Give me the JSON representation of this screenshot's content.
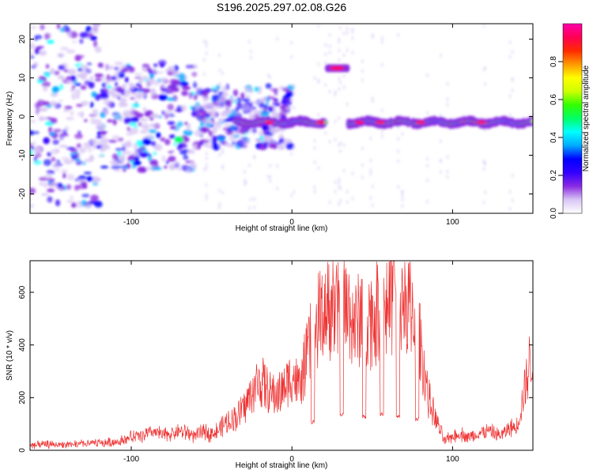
{
  "chart_data": [
    {
      "type": "heatmap",
      "title": "S196.2025.297.02.08.G26",
      "xlabel": "Height of straight line (km)",
      "ylabel": "Frequency (Hz)",
      "xlim": [
        -163,
        150
      ],
      "ylim": [
        -25,
        24
      ],
      "xticks": [
        -100,
        0,
        100
      ],
      "yticks": [
        -20,
        -10,
        0,
        10,
        20
      ],
      "colorbar": {
        "label": "Normalized spectral amplitude",
        "range": [
          0,
          1
        ],
        "ticks": [
          "0.0",
          "0.2",
          "0.4",
          "0.6",
          "0.8"
        ],
        "tick_values": [
          0.0,
          0.2,
          0.4,
          0.6,
          0.8
        ],
        "colormap": [
          "#ffffff",
          "#d8c6f4",
          "#8a2be2",
          "#3300ff",
          "#0000ff",
          "#00aaff",
          "#00ffff",
          "#00ff66",
          "#33ff00",
          "#ccff00",
          "#ffff00",
          "#ff9900",
          "#ff2a00",
          "#ff0055",
          "#ff00aa"
        ]
      },
      "features": [
        {
          "name": "scattered noise left",
          "x_range": [
            -163,
            -40
          ],
          "freq_range": [
            -25,
            24
          ],
          "amplitude": 0.15
        },
        {
          "name": "main band",
          "x_range": [
            -35,
            150
          ],
          "freq": -1.5,
          "amplitude_peak": 0.9
        },
        {
          "name": "offset segment",
          "x_range": [
            22,
            35
          ],
          "freq": 12.5,
          "amplitude_peak": 0.9
        },
        {
          "name": "gap",
          "x_range": [
            21,
            35
          ]
        }
      ]
    },
    {
      "type": "line",
      "title": "",
      "xlabel": "Height of straight line (km)",
      "ylabel": "SNR (10 * v/v)",
      "xlim": [
        -163,
        150
      ],
      "ylim": [
        0,
        720
      ],
      "xticks": [
        -100,
        0,
        100
      ],
      "yticks": [
        0,
        200,
        400,
        600
      ],
      "color": "#ee3333",
      "series": [
        {
          "name": "SNR",
          "x": [
            -163,
            -150,
            -140,
            -130,
            -120,
            -110,
            -100,
            -95,
            -90,
            -85,
            -80,
            -75,
            -70,
            -65,
            -60,
            -55,
            -50,
            -45,
            -40,
            -35,
            -30,
            -25,
            -20,
            -15,
            -10,
            -5,
            0,
            5,
            10,
            15,
            20,
            25,
            30,
            35,
            40,
            45,
            50,
            55,
            60,
            65,
            70,
            75,
            80,
            85,
            90,
            95,
            100,
            105,
            110,
            115,
            120,
            125,
            130,
            135,
            140,
            145,
            150
          ],
          "y": [
            20,
            25,
            22,
            28,
            30,
            35,
            55,
            60,
            70,
            75,
            65,
            70,
            80,
            75,
            60,
            80,
            70,
            90,
            120,
            140,
            180,
            240,
            300,
            250,
            230,
            260,
            320,
            260,
            420,
            520,
            600,
            620,
            560,
            600,
            520,
            600,
            560,
            600,
            620,
            640,
            660,
            600,
            450,
            220,
            120,
            40,
            60,
            70,
            55,
            65,
            80,
            75,
            60,
            90,
            100,
            260,
            440
          ]
        }
      ],
      "dropouts": [
        {
          "x": 13,
          "y_min": 100
        },
        {
          "x": 31,
          "y_min": 130
        },
        {
          "x": 45,
          "y_min": 120
        },
        {
          "x": 56,
          "y_min": 130
        },
        {
          "x": 66,
          "y_min": 120
        },
        {
          "x": 78,
          "y_min": 110
        }
      ]
    }
  ]
}
